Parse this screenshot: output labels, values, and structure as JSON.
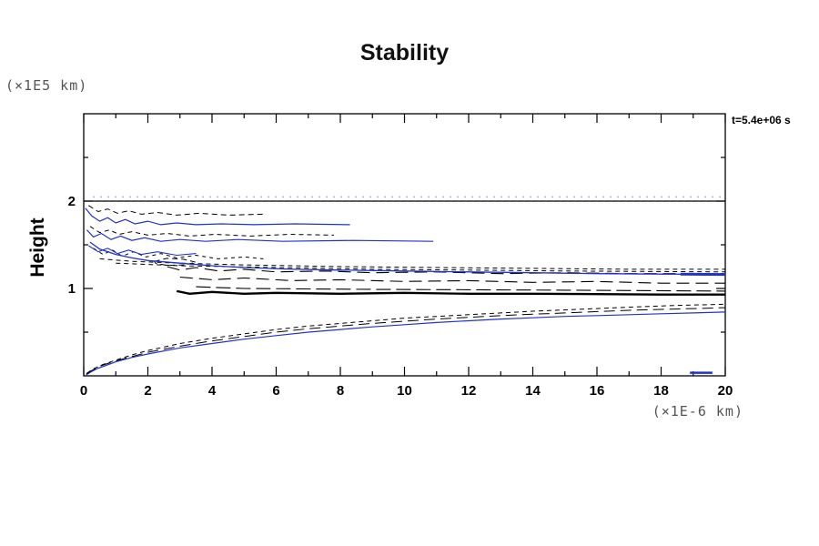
{
  "chart_data": {
    "type": "line",
    "title": "Stability",
    "ylabel": "Height",
    "y_unit_label": "(×1E5 km)",
    "xlabel": "(×1E-6 km)",
    "annotation": "t=5.4e+06 s",
    "xlim": [
      0,
      20
    ],
    "ylim": [
      0,
      3
    ],
    "grid": false,
    "xticks": [
      0,
      2,
      4,
      6,
      8,
      10,
      12,
      14,
      16,
      18,
      20
    ],
    "xtick_labels": [
      "0",
      "2",
      "4",
      "6",
      "8",
      "10",
      "12",
      "14",
      "16",
      "18",
      "20"
    ],
    "x_minor": [
      1,
      3,
      5,
      7,
      9,
      11,
      13,
      15,
      17,
      19
    ],
    "yticks": [
      1,
      2
    ],
    "ytick_labels": [
      "1",
      "2"
    ],
    "y_minor": [
      0.5,
      1.5,
      2.5
    ],
    "colors": {
      "black": "#000000",
      "blue": "#2233cc"
    },
    "series": [
      {
        "name": "upper-boundary-line",
        "color": "black",
        "width": 1.3,
        "dash": "",
        "points": [
          [
            0,
            2.0
          ],
          [
            20,
            2.0
          ]
        ]
      },
      {
        "name": "upper-dotted-blue",
        "color": "blue",
        "width": 1,
        "dash": "1,7",
        "points": [
          [
            0.3,
            2.05
          ],
          [
            20,
            2.05
          ]
        ]
      },
      {
        "name": "cluster-a-blue",
        "color": "blue",
        "width": 1.2,
        "dash": "",
        "points": [
          [
            0.05,
            1.92
          ],
          [
            0.25,
            1.83
          ],
          [
            0.5,
            1.77
          ],
          [
            0.75,
            1.81
          ],
          [
            1.0,
            1.75
          ],
          [
            1.3,
            1.79
          ],
          [
            1.6,
            1.74
          ],
          [
            2.0,
            1.77
          ],
          [
            2.4,
            1.73
          ],
          [
            2.9,
            1.75
          ],
          [
            3.5,
            1.73
          ],
          [
            4.3,
            1.74
          ],
          [
            5.3,
            1.73
          ],
          [
            6.6,
            1.74
          ],
          [
            8.3,
            1.73
          ]
        ]
      },
      {
        "name": "cluster-a-dash",
        "color": "black",
        "width": 1,
        "dash": "6,4",
        "points": [
          [
            0.15,
            1.95
          ],
          [
            0.45,
            1.88
          ],
          [
            0.75,
            1.91
          ],
          [
            1.05,
            1.86
          ],
          [
            1.4,
            1.89
          ],
          [
            1.8,
            1.85
          ],
          [
            2.3,
            1.87
          ],
          [
            2.9,
            1.84
          ],
          [
            3.6,
            1.86
          ],
          [
            4.5,
            1.84
          ],
          [
            5.6,
            1.85
          ]
        ]
      },
      {
        "name": "cluster-b-blue",
        "color": "blue",
        "width": 1.2,
        "dash": "",
        "points": [
          [
            0.1,
            1.67
          ],
          [
            0.3,
            1.59
          ],
          [
            0.55,
            1.63
          ],
          [
            0.85,
            1.56
          ],
          [
            1.15,
            1.6
          ],
          [
            1.5,
            1.55
          ],
          [
            1.9,
            1.58
          ],
          [
            2.4,
            1.54
          ],
          [
            3.0,
            1.56
          ],
          [
            3.8,
            1.54
          ],
          [
            4.8,
            1.56
          ],
          [
            6.2,
            1.54
          ],
          [
            8.4,
            1.55
          ],
          [
            10.9,
            1.54
          ]
        ]
      },
      {
        "name": "cluster-b-dash",
        "color": "black",
        "width": 1,
        "dash": "5,4",
        "points": [
          [
            0.2,
            1.71
          ],
          [
            0.5,
            1.64
          ],
          [
            0.8,
            1.67
          ],
          [
            1.1,
            1.62
          ],
          [
            1.5,
            1.65
          ],
          [
            2.0,
            1.61
          ],
          [
            2.6,
            1.63
          ],
          [
            3.3,
            1.6
          ],
          [
            4.1,
            1.62
          ],
          [
            5.2,
            1.6
          ],
          [
            6.4,
            1.62
          ],
          [
            7.8,
            1.61
          ]
        ]
      },
      {
        "name": "cluster-c-dash",
        "color": "black",
        "width": 1,
        "dash": "4,4",
        "points": [
          [
            0.3,
            1.46
          ],
          [
            0.6,
            1.39
          ],
          [
            0.9,
            1.44
          ],
          [
            1.2,
            1.37
          ],
          [
            1.55,
            1.42
          ],
          [
            1.95,
            1.36
          ],
          [
            2.4,
            1.4
          ],
          [
            2.9,
            1.35
          ],
          [
            3.5,
            1.38
          ],
          [
            4.2,
            1.34
          ],
          [
            5.0,
            1.36
          ],
          [
            5.6,
            1.34
          ]
        ]
      },
      {
        "name": "cluster-c-blue",
        "color": "blue",
        "width": 1.1,
        "dash": "",
        "points": [
          [
            0.15,
            1.49
          ],
          [
            0.45,
            1.42
          ],
          [
            0.75,
            1.46
          ],
          [
            1.05,
            1.4
          ],
          [
            1.4,
            1.44
          ],
          [
            1.8,
            1.39
          ],
          [
            2.3,
            1.42
          ],
          [
            2.9,
            1.38
          ],
          [
            3.5,
            1.4
          ]
        ]
      },
      {
        "name": "small-dashed-loop",
        "color": "black",
        "width": 1,
        "dash": "6,4",
        "points": [
          [
            2.2,
            1.31
          ],
          [
            2.6,
            1.345
          ],
          [
            3.1,
            1.335
          ],
          [
            3.5,
            1.3
          ],
          [
            3.15,
            1.27
          ],
          [
            2.6,
            1.265
          ],
          [
            2.25,
            1.285
          ],
          [
            2.2,
            1.31
          ]
        ]
      },
      {
        "name": "mid-longdash-upper",
        "color": "black",
        "width": 1.1,
        "dash": "14,7",
        "points": [
          [
            2.6,
            1.25
          ],
          [
            3.0,
            1.21
          ],
          [
            3.5,
            1.24
          ],
          [
            4.2,
            1.2
          ],
          [
            5.0,
            1.22
          ],
          [
            6.0,
            1.19
          ],
          [
            7.5,
            1.2
          ],
          [
            9.0,
            1.18
          ],
          [
            11,
            1.19
          ],
          [
            13,
            1.17
          ],
          [
            15,
            1.18
          ],
          [
            17,
            1.17
          ],
          [
            20,
            1.17
          ]
        ]
      },
      {
        "name": "mid-longdash-lower",
        "color": "black",
        "width": 1.1,
        "dash": "14,7",
        "points": [
          [
            3.0,
            1.13
          ],
          [
            4.0,
            1.1
          ],
          [
            5.0,
            1.12
          ],
          [
            6.5,
            1.09
          ],
          [
            8,
            1.1
          ],
          [
            10,
            1.08
          ],
          [
            12,
            1.09
          ],
          [
            14,
            1.07
          ],
          [
            16,
            1.08
          ],
          [
            18,
            1.06
          ],
          [
            20,
            1.06
          ]
        ]
      },
      {
        "name": "mid-shortdash-upper",
        "color": "black",
        "width": 1,
        "dash": "5,4",
        "points": [
          [
            0.5,
            1.34
          ],
          [
            1.5,
            1.31
          ],
          [
            3,
            1.29
          ],
          [
            5,
            1.27
          ],
          [
            8,
            1.25
          ],
          [
            11,
            1.24
          ],
          [
            14,
            1.23
          ],
          [
            17,
            1.22
          ],
          [
            20,
            1.22
          ]
        ]
      },
      {
        "name": "mid-shortdash-lower",
        "color": "black",
        "width": 1,
        "dash": "5,4",
        "points": [
          [
            1.0,
            1.29
          ],
          [
            3,
            1.26
          ],
          [
            6,
            1.24
          ],
          [
            9,
            1.22
          ],
          [
            12,
            1.21
          ],
          [
            15,
            1.2
          ],
          [
            20,
            1.19
          ]
        ]
      },
      {
        "name": "main-blue-contour",
        "color": "blue",
        "width": 1.3,
        "dash": "",
        "points": [
          [
            0.2,
            1.53
          ],
          [
            0.5,
            1.45
          ],
          [
            1,
            1.39
          ],
          [
            1.5,
            1.35
          ],
          [
            2,
            1.32
          ],
          [
            3,
            1.29
          ],
          [
            4,
            1.26
          ],
          [
            5,
            1.24
          ],
          [
            6.5,
            1.22
          ],
          [
            8,
            1.21
          ],
          [
            10,
            1.2
          ],
          [
            12,
            1.19
          ],
          [
            14,
            1.18
          ],
          [
            16,
            1.17
          ],
          [
            18,
            1.165
          ],
          [
            20,
            1.16
          ]
        ]
      },
      {
        "name": "blue-thick-right",
        "color": "blue",
        "width": 3,
        "dash": "",
        "points": [
          [
            18.6,
            1.165
          ],
          [
            20,
            1.16
          ]
        ]
      },
      {
        "name": "heavy-black-band",
        "color": "black",
        "width": 2.3,
        "dash": "",
        "points": [
          [
            2.9,
            0.97
          ],
          [
            3.3,
            0.94
          ],
          [
            4,
            0.96
          ],
          [
            5,
            0.94
          ],
          [
            6,
            0.95
          ],
          [
            8,
            0.94
          ],
          [
            10,
            0.95
          ],
          [
            12,
            0.94
          ],
          [
            14,
            0.94
          ],
          [
            16,
            0.935
          ],
          [
            18,
            0.93
          ],
          [
            20,
            0.93
          ]
        ]
      },
      {
        "name": "band-longdash-above",
        "color": "black",
        "width": 1.1,
        "dash": "16,6",
        "points": [
          [
            3.5,
            1.02
          ],
          [
            5,
            1.0
          ],
          [
            7,
            0.995
          ],
          [
            9,
            0.99
          ],
          [
            12,
            0.985
          ],
          [
            15,
            0.98
          ],
          [
            20,
            0.97
          ]
        ]
      },
      {
        "name": "bottom-blue-curve",
        "color": "blue",
        "width": 1.2,
        "dash": "",
        "points": [
          [
            0.08,
            0.01
          ],
          [
            0.2,
            0.04
          ],
          [
            0.4,
            0.08
          ],
          [
            0.7,
            0.12
          ],
          [
            1.0,
            0.16
          ],
          [
            1.5,
            0.21
          ],
          [
            2,
            0.25
          ],
          [
            3,
            0.32
          ],
          [
            4,
            0.37
          ],
          [
            5,
            0.42
          ],
          [
            6,
            0.46
          ],
          [
            7,
            0.5
          ],
          [
            8,
            0.53
          ],
          [
            9,
            0.56
          ],
          [
            10,
            0.585
          ],
          [
            11,
            0.61
          ],
          [
            12,
            0.63
          ],
          [
            13,
            0.65
          ],
          [
            14,
            0.665
          ],
          [
            15,
            0.68
          ],
          [
            16,
            0.69
          ],
          [
            17,
            0.7
          ],
          [
            18,
            0.71
          ],
          [
            19,
            0.72
          ],
          [
            20,
            0.73
          ]
        ]
      },
      {
        "name": "bottom-shortdash-curve",
        "color": "black",
        "width": 1,
        "dash": "5,4",
        "points": [
          [
            0.1,
            0.03
          ],
          [
            0.3,
            0.08
          ],
          [
            0.6,
            0.13
          ],
          [
            1,
            0.18
          ],
          [
            1.5,
            0.24
          ],
          [
            2,
            0.29
          ],
          [
            3,
            0.37
          ],
          [
            4,
            0.43
          ],
          [
            5,
            0.48
          ],
          [
            6,
            0.53
          ],
          [
            7,
            0.57
          ],
          [
            8,
            0.6
          ],
          [
            9,
            0.63
          ],
          [
            10,
            0.66
          ],
          [
            11,
            0.68
          ],
          [
            12,
            0.7
          ],
          [
            13,
            0.72
          ],
          [
            14,
            0.74
          ],
          [
            15,
            0.755
          ],
          [
            16,
            0.77
          ],
          [
            17,
            0.785
          ],
          [
            18,
            0.8
          ],
          [
            19,
            0.81
          ],
          [
            20,
            0.82
          ]
        ]
      },
      {
        "name": "bottom-longdash-curve",
        "color": "black",
        "width": 1,
        "dash": "12,6",
        "points": [
          [
            0.08,
            0.02
          ],
          [
            0.25,
            0.06
          ],
          [
            0.5,
            0.11
          ],
          [
            0.9,
            0.16
          ],
          [
            1.4,
            0.21
          ],
          [
            2,
            0.27
          ],
          [
            3,
            0.34
          ],
          [
            4,
            0.4
          ],
          [
            5,
            0.45
          ],
          [
            6,
            0.5
          ],
          [
            7,
            0.54
          ],
          [
            8,
            0.57
          ],
          [
            9,
            0.6
          ],
          [
            10,
            0.625
          ],
          [
            11,
            0.65
          ],
          [
            12,
            0.67
          ],
          [
            13,
            0.69
          ],
          [
            14,
            0.705
          ],
          [
            15,
            0.72
          ],
          [
            16,
            0.735
          ],
          [
            17,
            0.75
          ],
          [
            18,
            0.76
          ],
          [
            19,
            0.77
          ],
          [
            20,
            0.78
          ]
        ]
      },
      {
        "name": "bottom-right-blue-mark",
        "color": "blue",
        "width": 2.5,
        "dash": "",
        "points": [
          [
            18.9,
            0.035
          ],
          [
            19.6,
            0.035
          ]
        ]
      }
    ]
  }
}
